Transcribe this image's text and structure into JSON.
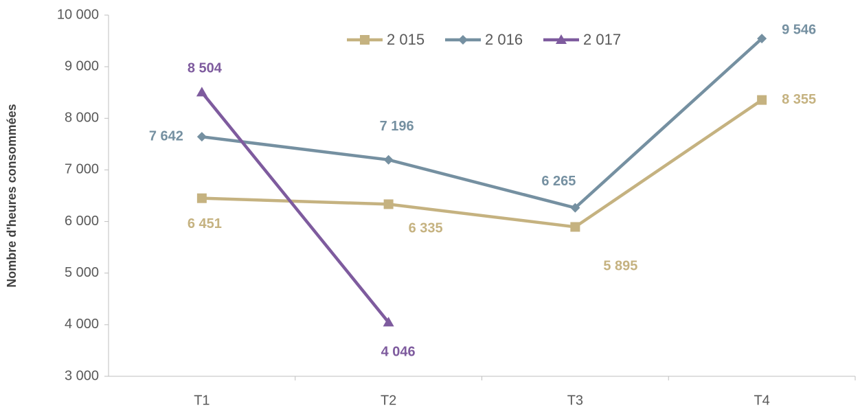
{
  "chart_data": {
    "type": "line",
    "y_label": "Nombre d'heures consommées",
    "categories": [
      "T1",
      "T2",
      "T3",
      "T4"
    ],
    "series": [
      {
        "name": "2 015",
        "color": "#c5b280",
        "marker": "square",
        "values": [
          6451,
          6335,
          5895,
          8355
        ],
        "value_labels": [
          "6 451",
          "6 335",
          "5 895",
          "8 355"
        ]
      },
      {
        "name": "2 016",
        "color": "#7590a1",
        "marker": "diamond",
        "values": [
          7642,
          7196,
          6265,
          9546
        ],
        "value_labels": [
          "7 642",
          "7 196",
          "6 265",
          "9 546"
        ]
      },
      {
        "name": "2 017",
        "color": "#7e5b9e",
        "marker": "triangle",
        "values": [
          8504,
          4046,
          null,
          null
        ],
        "value_labels": [
          "8 504",
          "4 046",
          null,
          null
        ]
      }
    ],
    "ylim": [
      3000,
      10000
    ],
    "yticks": [
      {
        "value": 3000,
        "label": "3 000"
      },
      {
        "value": 4000,
        "label": "4 000"
      },
      {
        "value": 5000,
        "label": "5 000"
      },
      {
        "value": 6000,
        "label": "6 000"
      },
      {
        "value": 7000,
        "label": "7 000"
      },
      {
        "value": 8000,
        "label": "8 000"
      },
      {
        "value": 9000,
        "label": "9 000"
      },
      {
        "value": 10000,
        "label": "10 000"
      }
    ],
    "grid": false,
    "legend": "top"
  }
}
